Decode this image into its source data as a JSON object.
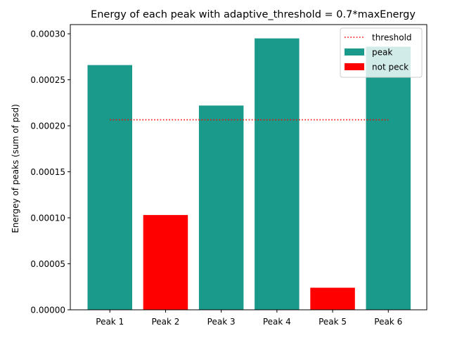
{
  "chart_data": {
    "type": "bar",
    "title": "Energy of each peak with adaptive_threshold = 0.7*maxEnergy",
    "xlabel": "",
    "ylabel": "Energey of peaks (sum of psd)",
    "categories": [
      "Peak 1",
      "Peak 2",
      "Peak 3",
      "Peak 4",
      "Peak 5",
      "Peak 6"
    ],
    "values": [
      0.000266,
      0.000103,
      0.000222,
      0.000295,
      2.4e-05,
      0.000286
    ],
    "classes": [
      "peak",
      "not peck",
      "peak",
      "peak",
      "not peck",
      "peak"
    ],
    "ylim": [
      0,
      0.00031
    ],
    "yticks": [
      0,
      5e-05,
      0.0001,
      0.00015,
      0.0002,
      0.00025,
      0.0003
    ],
    "ytick_labels": [
      "0.00000",
      "0.00005",
      "0.00010",
      "0.00015",
      "0.00020",
      "0.00025",
      "0.00030"
    ],
    "threshold": 0.0002065,
    "grid": false,
    "legend_position": "top-right",
    "legend": [
      {
        "label": "threshold",
        "kind": "line",
        "color": "#ff0000",
        "style": "dotted"
      },
      {
        "label": "peak",
        "kind": "patch",
        "color": "#1a9a8a"
      },
      {
        "label": "not peck",
        "kind": "patch",
        "color": "#ff0000"
      }
    ],
    "colors": {
      "peak": "#1a9a8a",
      "not peck": "#ff0000",
      "threshold": "#ff0000"
    }
  }
}
